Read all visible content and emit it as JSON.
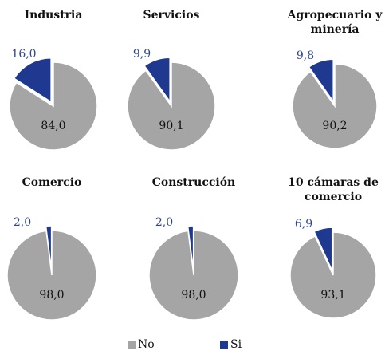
{
  "chart_data": [
    {
      "type": "pie",
      "title": "Industria",
      "categories": [
        "No",
        "Si"
      ],
      "values": [
        84.0,
        16.0
      ],
      "value_labels": [
        "84,0",
        "16,0"
      ],
      "colors": [
        "#a5a5a5",
        "#1f3990"
      ]
    },
    {
      "type": "pie",
      "title": "Servicios",
      "categories": [
        "No",
        "Si"
      ],
      "values": [
        90.1,
        9.9
      ],
      "value_labels": [
        "90,1",
        "9,9"
      ],
      "colors": [
        "#a5a5a5",
        "#1f3990"
      ]
    },
    {
      "type": "pie",
      "title": "Agropecuario y minería",
      "categories": [
        "No",
        "Si"
      ],
      "values": [
        90.2,
        9.8
      ],
      "value_labels": [
        "90,2",
        "9,8"
      ],
      "colors": [
        "#a5a5a5",
        "#1f3990"
      ]
    },
    {
      "type": "pie",
      "title": "Comercio",
      "categories": [
        "No",
        "Si"
      ],
      "values": [
        98.0,
        2.0
      ],
      "value_labels": [
        "98,0",
        "2,0"
      ],
      "colors": [
        "#a5a5a5",
        "#1f3990"
      ]
    },
    {
      "type": "pie",
      "title": "Construcción",
      "categories": [
        "No",
        "Si"
      ],
      "values": [
        98.0,
        2.0
      ],
      "value_labels": [
        "98,0",
        "2,0"
      ],
      "colors": [
        "#a5a5a5",
        "#1f3990"
      ]
    },
    {
      "type": "pie",
      "title": "10 cámaras de comercio",
      "categories": [
        "No",
        "Si"
      ],
      "values": [
        93.1,
        6.9
      ],
      "value_labels": [
        "93,1",
        "6,9"
      ],
      "colors": [
        "#a5a5a5",
        "#1f3990"
      ]
    }
  ]
}
